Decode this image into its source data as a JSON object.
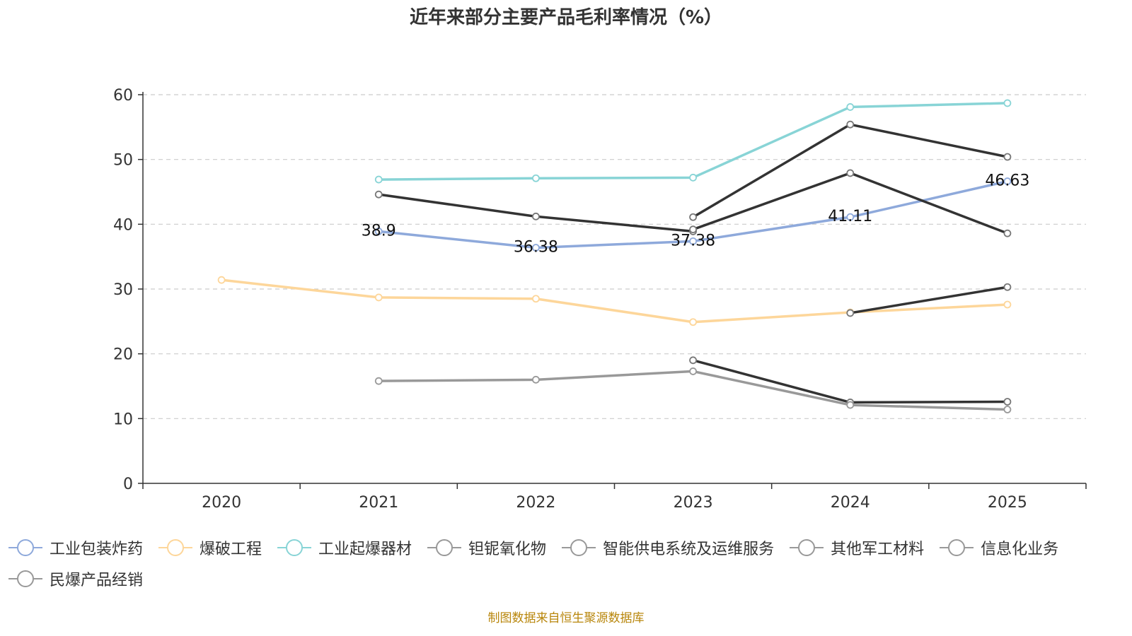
{
  "chart_data": {
    "type": "line",
    "title": "近年来部分主要产品毛利率情况（%）",
    "categories": [
      "2020",
      "2021",
      "2022",
      "2023",
      "2024",
      "2025"
    ],
    "ylim": [
      0,
      60
    ],
    "yticks": [
      0,
      10,
      20,
      30,
      40,
      50,
      60
    ],
    "grid": true,
    "legend_position": "bottom",
    "series": [
      {
        "name": "工业包装炸药",
        "color": "#8ea9db",
        "values": [
          null,
          38.9,
          36.38,
          37.38,
          41.11,
          46.63
        ],
        "labels": [
          null,
          "38.9",
          "36.38",
          "37.38",
          "41.11",
          "46.63"
        ]
      },
      {
        "name": "爆破工程",
        "color": "#fdd69a",
        "values": [
          31.4,
          28.7,
          28.5,
          24.9,
          26.4,
          27.6
        ]
      },
      {
        "name": "工业起爆器材",
        "color": "#88d4d6",
        "values": [
          null,
          46.9,
          47.1,
          47.2,
          58.1,
          58.7
        ]
      },
      {
        "name": "钽铌氧化物",
        "color": "#333333",
        "values": [
          null,
          44.6,
          41.2,
          38.9,
          null,
          null
        ]
      },
      {
        "name": "智能供电系统及运维服务",
        "color": "#333333",
        "values": [
          null,
          null,
          null,
          41.1,
          55.4,
          50.4
        ]
      },
      {
        "name": "其他军工材料",
        "color": "#333333",
        "values": [
          null,
          null,
          null,
          39.2,
          47.9,
          38.6
        ]
      },
      {
        "name": "信息化业务",
        "color": "#333333",
        "values": [
          null,
          null,
          null,
          19.0,
          12.5,
          12.6
        ]
      },
      {
        "name": "民爆产品经销",
        "color": "#333333",
        "values": [
          null,
          null,
          null,
          null,
          26.3,
          30.3
        ]
      },
      {
        "name": "",
        "color": "#999999",
        "values": [
          null,
          15.8,
          16.0,
          17.3,
          12.1,
          11.4
        ]
      }
    ]
  },
  "legend": [
    {
      "label": "工业包装炸药",
      "color": "#8ea9db"
    },
    {
      "label": "爆破工程",
      "color": "#fdd69a"
    },
    {
      "label": "工业起爆器材",
      "color": "#88d4d6"
    },
    {
      "label": "钽铌氧化物",
      "color": "#999999"
    },
    {
      "label": "智能供电系统及运维服务",
      "color": "#999999"
    },
    {
      "label": "其他军工材料",
      "color": "#999999"
    },
    {
      "label": "信息化业务",
      "color": "#999999"
    },
    {
      "label": "民爆产品经销",
      "color": "#999999"
    }
  ],
  "source_note": "制图数据来自恒生聚源数据库"
}
